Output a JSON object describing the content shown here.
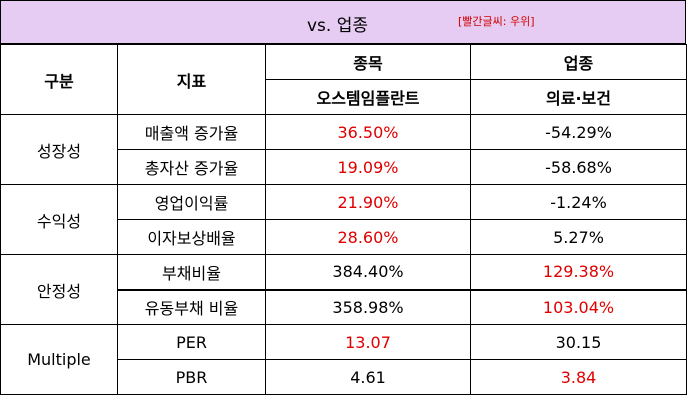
{
  "title": {
    "main": "vs. 업종",
    "note": "[빨간글씨: 우위]"
  },
  "header": {
    "category": "구분",
    "indicator": "지표",
    "stock_label": "종목",
    "industry_label": "업종",
    "stock_name": "오스템임플란트",
    "industry_name": "의료·보건"
  },
  "groups": [
    {
      "name": "성장성",
      "rows": [
        {
          "indicator": "매출액 증가율",
          "stock": "36.50%",
          "industry": "-54.29%",
          "winner": "stock"
        },
        {
          "indicator": "총자산 증가율",
          "stock": "19.09%",
          "industry": "-58.68%",
          "winner": "stock"
        }
      ]
    },
    {
      "name": "수익성",
      "rows": [
        {
          "indicator": "영업이익률",
          "stock": "21.90%",
          "industry": "-1.24%",
          "winner": "stock"
        },
        {
          "indicator": "이자보상배율",
          "stock": "28.60%",
          "industry": "5.27%",
          "winner": "stock"
        }
      ]
    },
    {
      "name": "안정성",
      "rows": [
        {
          "indicator": "부채비율",
          "stock": "384.40%",
          "industry": "129.38%",
          "winner": "industry"
        },
        {
          "indicator": "유동부채 비율",
          "stock": "358.98%",
          "industry": "103.04%",
          "winner": "industry"
        }
      ]
    },
    {
      "name": "Multiple",
      "rows": [
        {
          "indicator": "PER",
          "stock": "13.07",
          "industry": "30.15",
          "winner": "stock"
        },
        {
          "indicator": "PBR",
          "stock": "4.61",
          "industry": "3.84",
          "winner": "industry"
        }
      ]
    }
  ],
  "colors": {
    "header_band": "#e6ccf2",
    "highlight_text": "#e00000"
  }
}
